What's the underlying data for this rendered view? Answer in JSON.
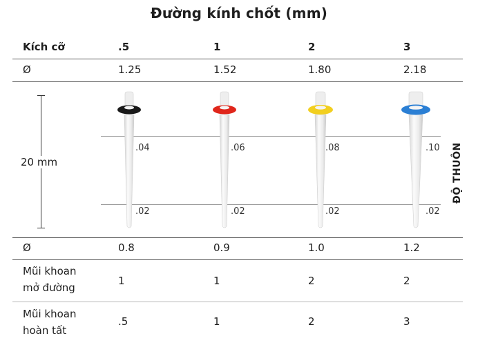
{
  "title": "Đường kính chốt (mm)",
  "header": {
    "label": "Kích cỡ",
    "sizes": [
      ".5",
      "1",
      "2",
      "3"
    ]
  },
  "row_top_diameter": {
    "label": "Ø",
    "values": [
      "1.25",
      "1.52",
      "1.80",
      "2.18"
    ]
  },
  "length_label": "20 mm",
  "taper_top": [
    ".04",
    ".06",
    ".08",
    ".10"
  ],
  "taper_bottom": [
    ".02",
    ".02",
    ".02",
    ".02"
  ],
  "side_label": "ĐỘ THUÔN",
  "row_bottom_diameter": {
    "label": "Ø",
    "values": [
      "0.8",
      "0.9",
      "1.0",
      "1.2"
    ]
  },
  "row_opening_drill": {
    "label_line1": "Mũi khoan",
    "label_line2": "mở đường",
    "values": [
      "1",
      "1",
      "2",
      "2"
    ]
  },
  "row_finishing_drill": {
    "label_line1": "Mũi khoan",
    "label_line2": "hoàn tất",
    "values": [
      ".5",
      "1",
      "2",
      "3"
    ]
  },
  "pin_colors": [
    "#1a1a1a",
    "#e0261b",
    "#f2cf1f",
    "#2b7fd4"
  ]
}
